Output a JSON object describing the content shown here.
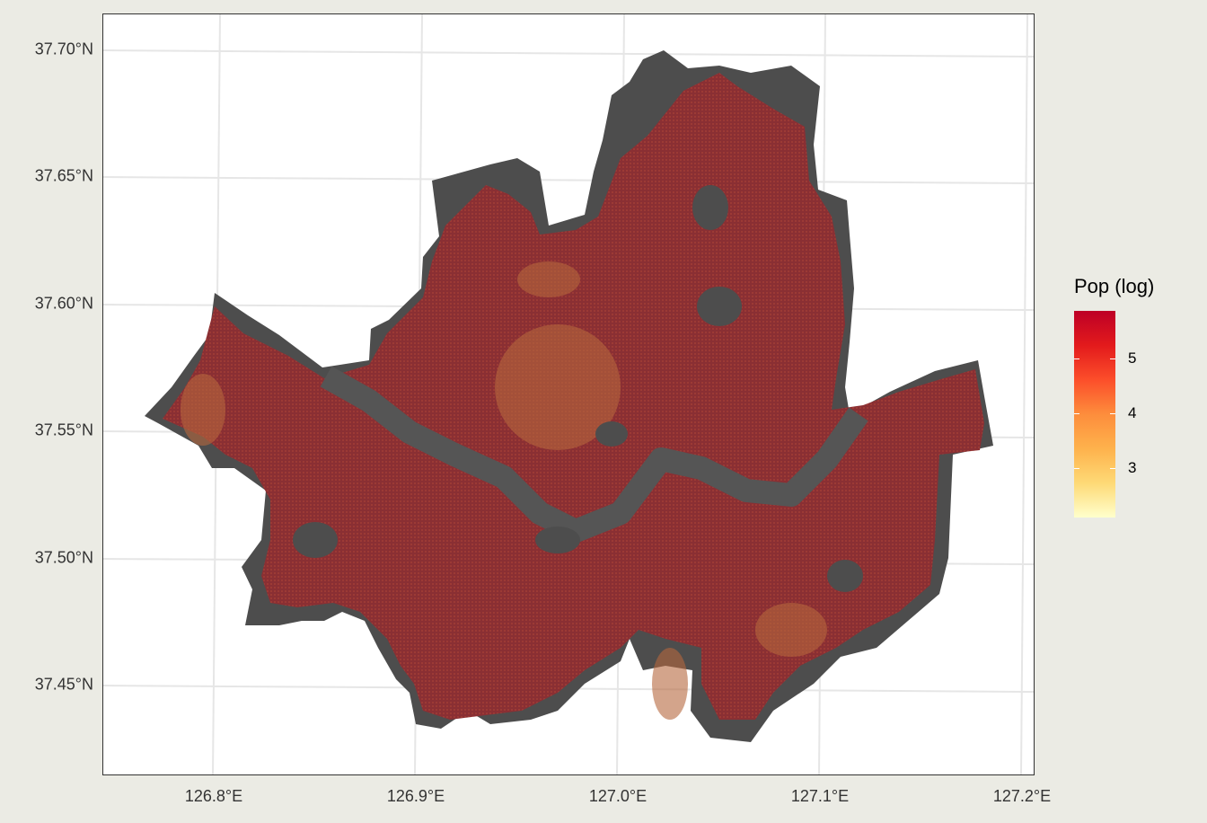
{
  "map": {
    "y_axis_labels": [
      "37.70°N",
      "37.65°N",
      "37.60°N",
      "37.55°N",
      "37.50°N",
      "37.45°N"
    ],
    "x_axis_labels": [
      "126.8°E",
      "126.9°E",
      "127.0°E",
      "127.1°E",
      "127.2°E"
    ],
    "gridlines": true,
    "base_color": "#4d4d4d",
    "river_color": "#555555"
  },
  "legend": {
    "title": "Pop (log)",
    "labels": [
      "5",
      "4",
      "3"
    ],
    "colors": [
      "#ffffcc",
      "#fed976",
      "#feb24c",
      "#fd8d3c",
      "#fc4e2a",
      "#e31a1c",
      "#bd0026"
    ]
  }
}
